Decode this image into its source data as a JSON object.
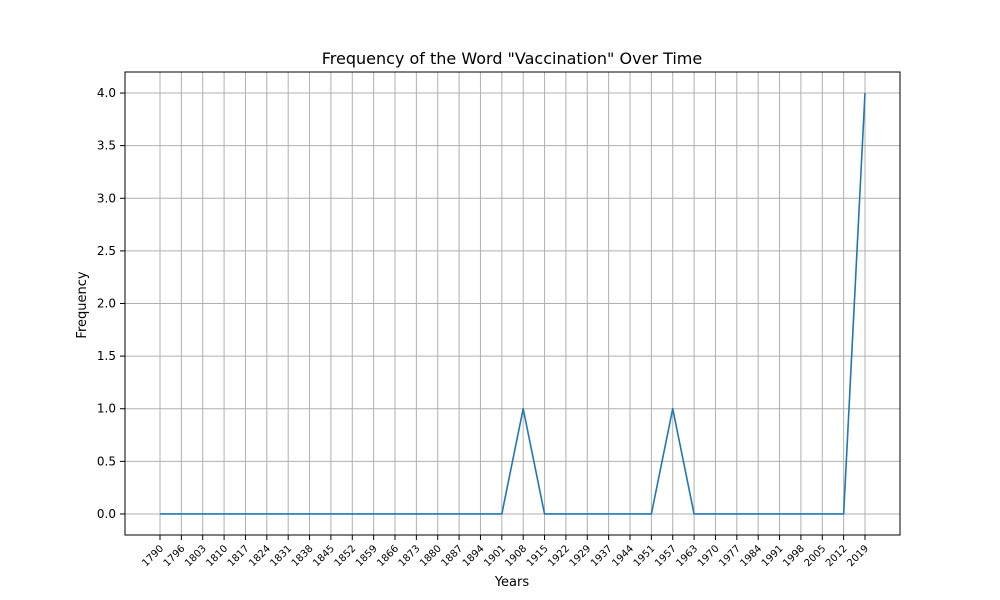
{
  "chart_data": {
    "type": "line",
    "title": "Frequency of the Word \"Vaccination\" Over Time",
    "xlabel": "Years",
    "ylabel": "Frequency",
    "ylim": [
      -0.2,
      4.2
    ],
    "yticks": [
      0.0,
      0.5,
      1.0,
      1.5,
      2.0,
      2.5,
      3.0,
      3.5,
      4.0
    ],
    "ytick_labels": [
      "0.0",
      "0.5",
      "1.0",
      "1.5",
      "2.0",
      "2.5",
      "3.0",
      "3.5",
      "4.0"
    ],
    "grid": true,
    "line_color": "#1f77b4",
    "categories": [
      "1790",
      "1796",
      "1803",
      "1810",
      "1817",
      "1824",
      "1831",
      "1838",
      "1845",
      "1852",
      "1859",
      "1866",
      "1873",
      "1880",
      "1887",
      "1894",
      "1901",
      "1908",
      "1915",
      "1922",
      "1929",
      "1937",
      "1944",
      "1951",
      "1957",
      "1963",
      "1970",
      "1977",
      "1984",
      "1991",
      "1998",
      "2005",
      "2012",
      "2019"
    ],
    "values": [
      0,
      0,
      0,
      0,
      0,
      0,
      0,
      0,
      0,
      0,
      0,
      0,
      0,
      0,
      0,
      0,
      0,
      1,
      0,
      0,
      0,
      0,
      0,
      0,
      1,
      0,
      0,
      0,
      0,
      0,
      0,
      0,
      0,
      4
    ]
  }
}
